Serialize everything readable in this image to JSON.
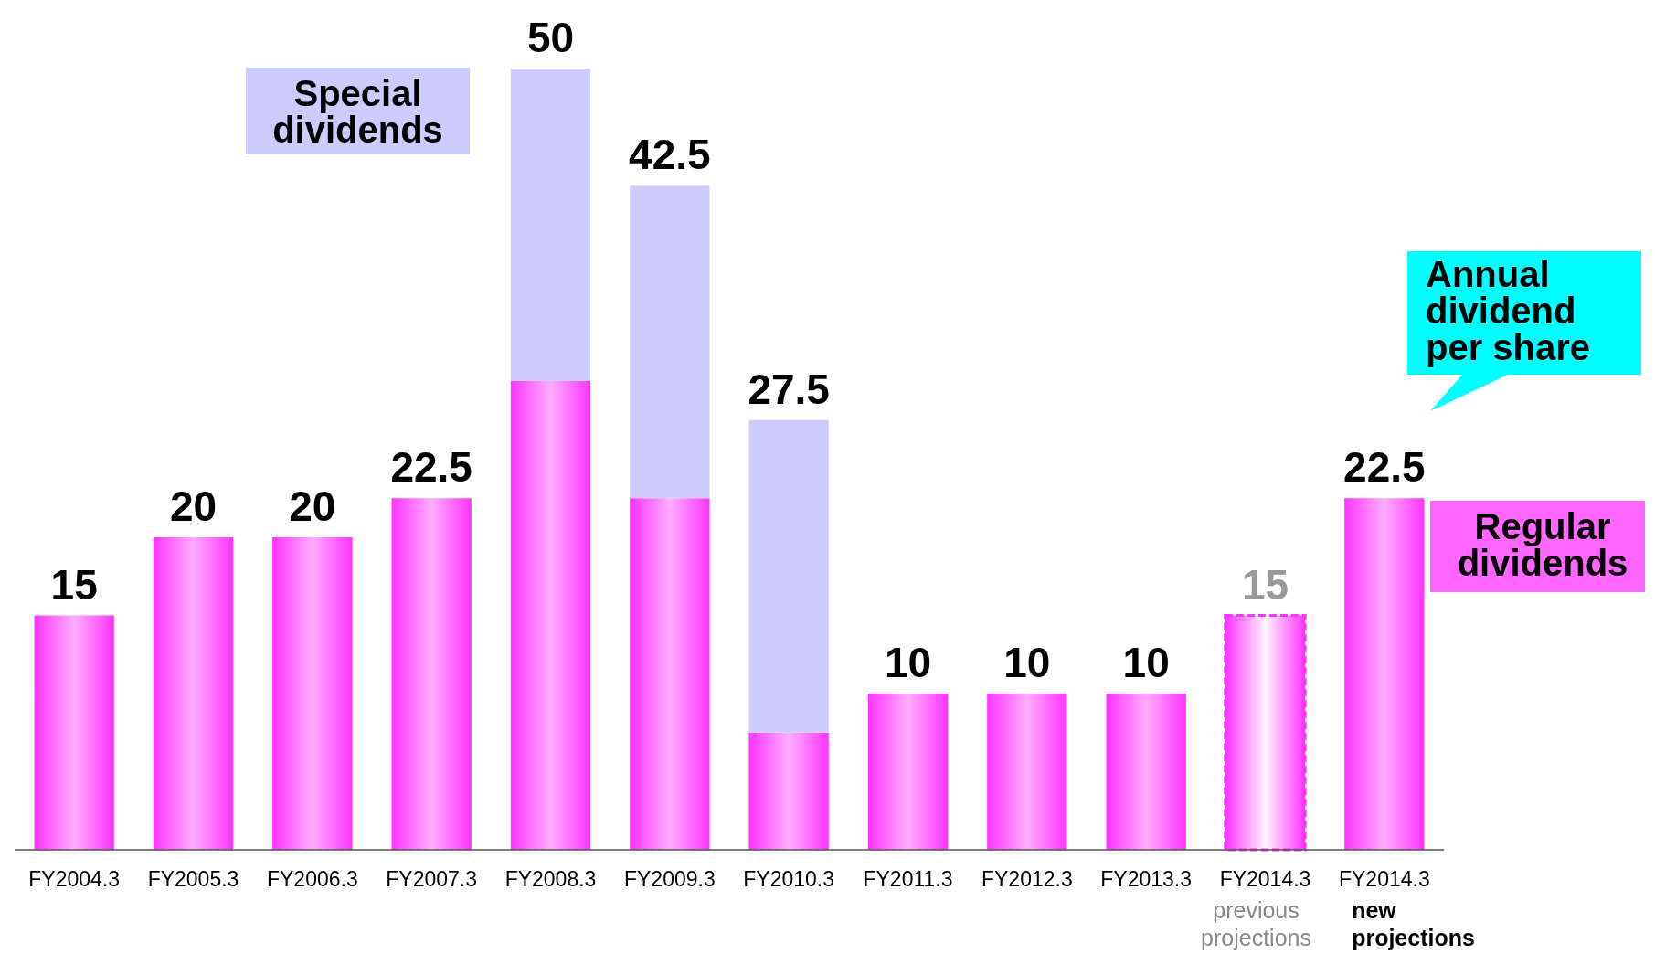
{
  "chart_data": {
    "type": "bar",
    "stacked": true,
    "categories": [
      "FY2004.3",
      "FY2005.3",
      "FY2006.3",
      "FY2007.3",
      "FY2008.3",
      "FY2009.3",
      "FY2010.3",
      "FY2011.3",
      "FY2012.3",
      "FY2013.3",
      "FY2014.3\nprevious\nprojections",
      "FY2014.3\nnew\nprojections"
    ],
    "series": [
      {
        "name": "Regular dividends",
        "color": "#ff33ff",
        "values": [
          15,
          20,
          20,
          22.5,
          30,
          22.5,
          7.5,
          10,
          10,
          10,
          null,
          22.5
        ],
        "value_labels": [
          "15",
          "20",
          "20",
          "22.5",
          null,
          null,
          null,
          "10",
          "10",
          "10",
          null,
          "22.5"
        ]
      },
      {
        "name": "Special dividends",
        "color": "#ccccff",
        "values": [
          null,
          null,
          null,
          null,
          20,
          20,
          20,
          null,
          null,
          null,
          null,
          null
        ]
      },
      {
        "color": "#ff33ff",
        "line_style": "dashed",
        "values": [
          null,
          null,
          null,
          null,
          null,
          null,
          null,
          null,
          null,
          null,
          15,
          null
        ],
        "value_labels": [
          null,
          null,
          null,
          null,
          null,
          null,
          null,
          null,
          null,
          null,
          "15",
          null
        ]
      }
    ],
    "totals": [
      null,
      null,
      null,
      null,
      "50",
      "42.5",
      "27.5",
      null,
      null,
      null,
      null,
      null
    ],
    "annotations": [
      "Annual dividend per share"
    ]
  }
}
